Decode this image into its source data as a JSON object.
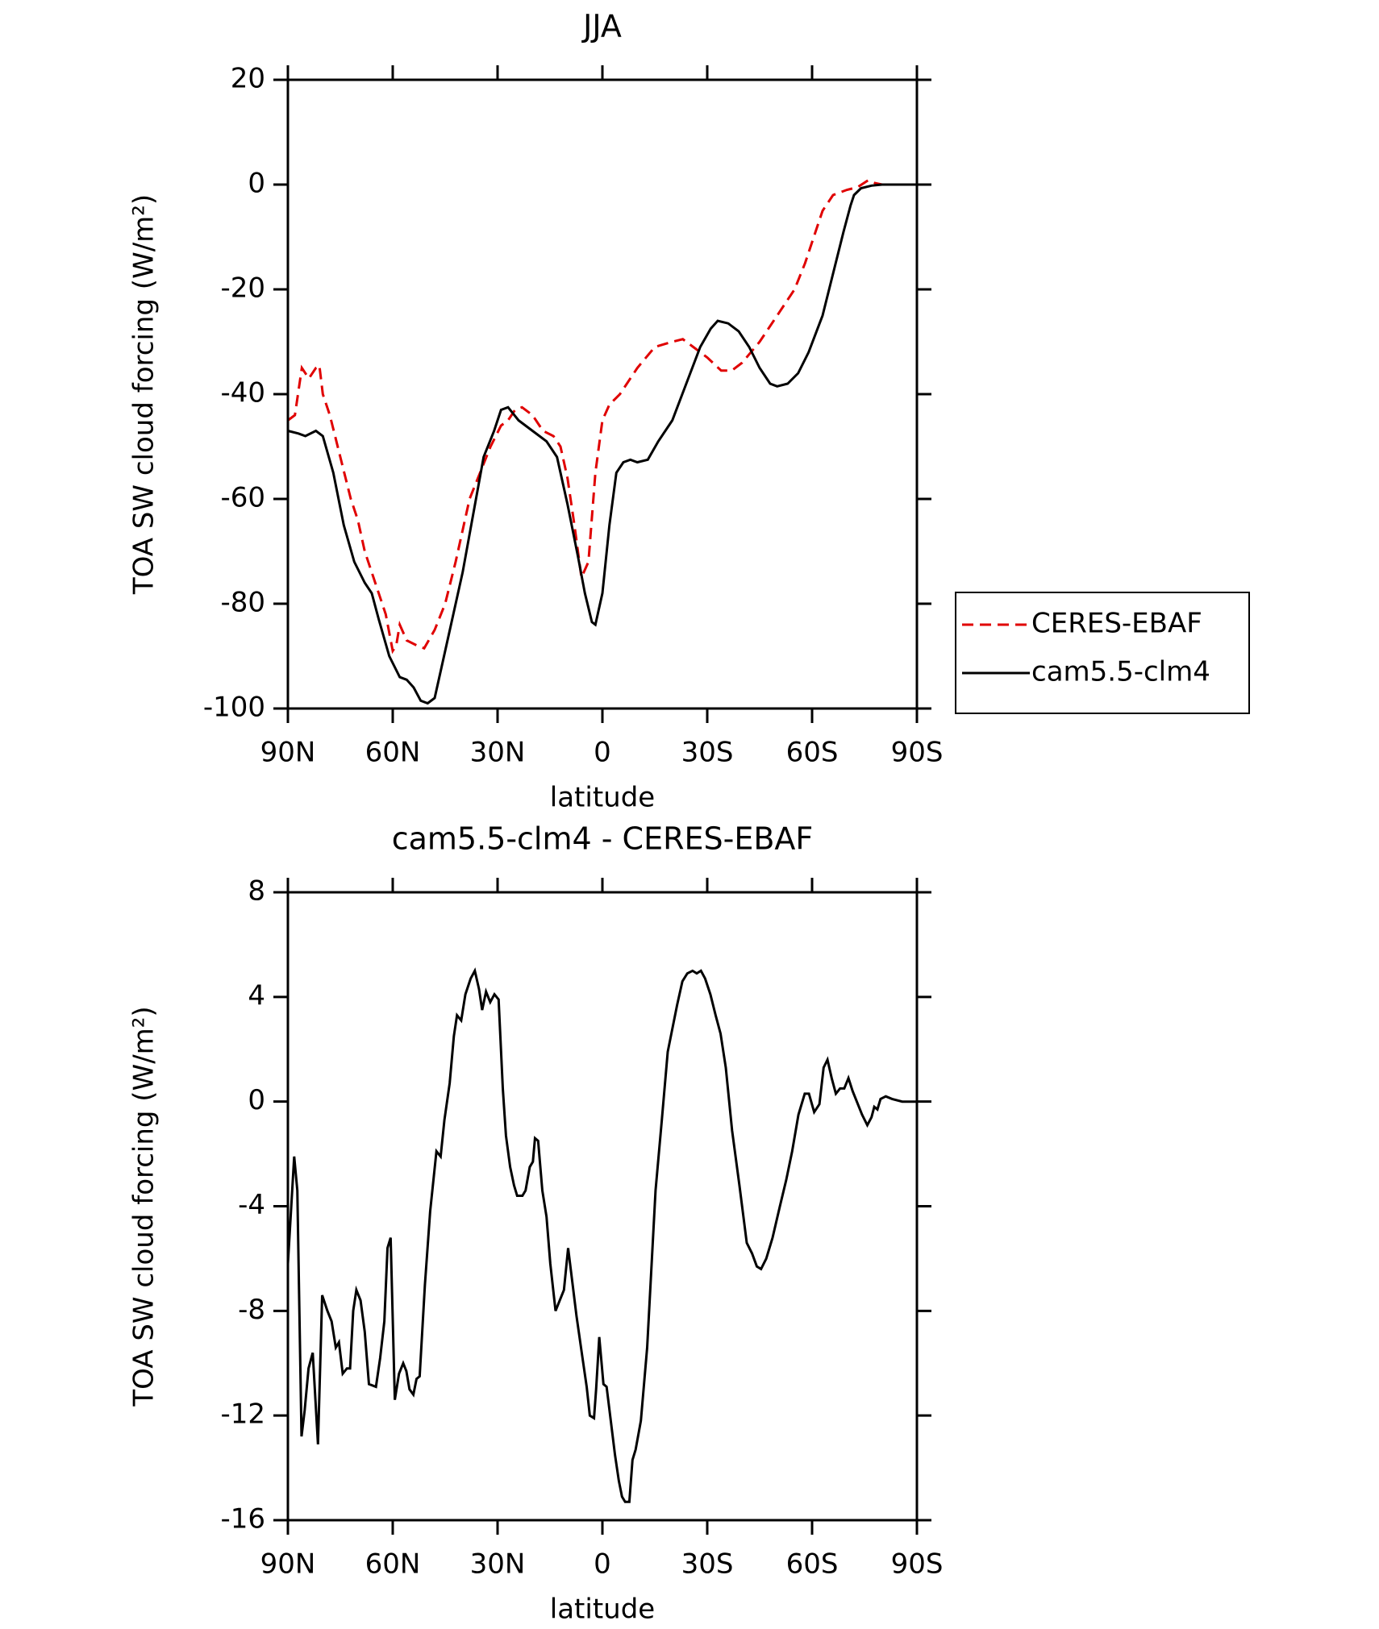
{
  "chart_data": [
    {
      "type": "line",
      "title": "JJA",
      "x_label": "latitude",
      "y_label": "TOA SW cloud forcing (W/m²)",
      "xlim": [
        90,
        -90
      ],
      "xticks": [
        {
          "value": 90,
          "label": "90N"
        },
        {
          "value": 60,
          "label": "60N"
        },
        {
          "value": 30,
          "label": "30N"
        },
        0,
        {
          "value": -30,
          "label": "30S"
        },
        {
          "value": -60,
          "label": "60S"
        },
        {
          "value": -90,
          "label": "90S"
        }
      ],
      "ylim": [
        -100,
        20
      ],
      "yticks": [
        20,
        0,
        -20,
        -40,
        -60,
        -80,
        -100
      ],
      "legend": "outside-right",
      "series": [
        {
          "name": "CERES-EBAF",
          "color": "#e00000",
          "style": "dashed",
          "x": [
            90,
            88,
            86,
            84,
            82,
            81,
            80,
            78,
            75,
            72,
            70,
            68,
            65,
            62,
            60,
            59,
            58,
            56,
            53,
            51,
            48,
            45,
            42,
            38,
            35,
            32,
            29,
            27,
            25,
            23,
            20,
            17,
            14,
            12,
            10,
            8,
            6,
            4,
            2,
            0,
            -2,
            -5,
            -10,
            -15,
            -20,
            -23,
            -26,
            -30,
            -34,
            -37,
            -40,
            -45,
            -50,
            -55,
            -58,
            -61,
            -63,
            -66,
            -70,
            -73,
            -76,
            -78,
            -80,
            -90
          ],
          "values": [
            -45,
            -44,
            -35,
            -37,
            -35,
            -34.5,
            -40,
            -44,
            -52,
            -60,
            -64,
            -70,
            -76,
            -82,
            -89,
            -88,
            -84,
            -87,
            -88,
            -88.5,
            -85,
            -80,
            -72,
            -60,
            -55,
            -50,
            -46,
            -45,
            -43,
            -42.5,
            -44,
            -47,
            -48,
            -50,
            -56,
            -65,
            -75,
            -72,
            -55,
            -45,
            -42,
            -40,
            -35,
            -31,
            -30,
            -29.5,
            -31,
            -33,
            -35.5,
            -35.5,
            -34,
            -30,
            -25,
            -20,
            -15,
            -9,
            -5,
            -2,
            -1,
            -0.5,
            0.8,
            0.3,
            0,
            0
          ]
        },
        {
          "name": "cam5.5-clm4",
          "color": "#000000",
          "style": "solid",
          "x": [
            90,
            87,
            85,
            82,
            80,
            77,
            74,
            71,
            68,
            66,
            64,
            61,
            58,
            56,
            54,
            52,
            50,
            48,
            46,
            43,
            40,
            37,
            34,
            31,
            29,
            27,
            24,
            20,
            16,
            13,
            10,
            7,
            5,
            3,
            2,
            0,
            -2,
            -4,
            -6,
            -8,
            -10,
            -13,
            -16,
            -20,
            -24,
            -28,
            -31,
            -33,
            -36,
            -39,
            -42,
            -45,
            -48,
            -50,
            -53,
            -56,
            -59,
            -63,
            -66,
            -69,
            -71,
            -72,
            -74,
            -77,
            -80,
            -90
          ],
          "values": [
            -47,
            -47.5,
            -48,
            -47,
            -48,
            -55,
            -65,
            -72,
            -76,
            -78,
            -83,
            -90,
            -94,
            -94.5,
            -96,
            -98.5,
            -99,
            -98,
            -92,
            -83,
            -74,
            -63,
            -52,
            -47,
            -43,
            -42.5,
            -45,
            -47,
            -49,
            -52,
            -61,
            -71,
            -78,
            -83.5,
            -84,
            -78,
            -65,
            -55,
            -53,
            -52.5,
            -53,
            -52.5,
            -49,
            -45,
            -38,
            -31,
            -27.5,
            -26,
            -26.5,
            -28,
            -31,
            -35,
            -38,
            -38.5,
            -38,
            -36,
            -32,
            -25,
            -17,
            -9,
            -4,
            -2,
            -0.7,
            -0.2,
            0,
            0
          ]
        }
      ]
    },
    {
      "type": "line",
      "title": "cam5.5-clm4 - CERES-EBAF",
      "x_label": "latitude",
      "y_label": "TOA SW cloud forcing (W/m²)",
      "xlim": [
        90,
        -90
      ],
      "xticks": [
        {
          "value": 90,
          "label": "90N"
        },
        {
          "value": 60,
          "label": "60N"
        },
        {
          "value": 30,
          "label": "30N"
        },
        0,
        {
          "value": -30,
          "label": "30S"
        },
        {
          "value": -60,
          "label": "60S"
        },
        {
          "value": -90,
          "label": "90S"
        }
      ],
      "ylim": [
        -16,
        8
      ],
      "yticks": [
        8,
        4,
        0,
        -4,
        -8,
        -12,
        -16
      ],
      "series": [
        {
          "color": "#000000",
          "style": "solid",
          "x": [
            90,
            88.2,
            87.3,
            86.1,
            85.2,
            84.1,
            82.9,
            81.4,
            80.2,
            78.7,
            77.5,
            76.3,
            75.4,
            74.3,
            73.1,
            72.2,
            71.3,
            70.4,
            69.2,
            68.0,
            66.8,
            64.8,
            63.6,
            62.4,
            61.5,
            60.6,
            59.4,
            58.2,
            57.0,
            56.1,
            55.2,
            54.1,
            53.2,
            52.3,
            50.8,
            49.3,
            47.5,
            46.3,
            45.2,
            43.7,
            42.5,
            41.6,
            40.4,
            39.2,
            37.7,
            36.5,
            35.3,
            34.4,
            33.3,
            32.1,
            30.9,
            29.7,
            28.5,
            27.6,
            26.4,
            25.3,
            24.4,
            22.9,
            22.0,
            20.8,
            19.9,
            19.3,
            18.4,
            17.2,
            16.0,
            14.9,
            13.4,
            12.2,
            11.0,
            9.8,
            8.6,
            7.4,
            5.9,
            4.5,
            3.6,
            2.4,
            1.8,
            0.9,
            -0.3,
            -1.2,
            -2.4,
            -3.6,
            -4.7,
            -5.6,
            -6.5,
            -7.7,
            -8.6,
            -9.5,
            -11.0,
            -12.8,
            -14.0,
            -15.2,
            -17.0,
            -18.7,
            -19.9,
            -21.4,
            -22.9,
            -24.3,
            -25.8,
            -27.0,
            -28.2,
            -29.4,
            -30.9,
            -32.4,
            -33.8,
            -35.3,
            -37.1,
            -39.2,
            -41.3,
            -42.8,
            -44.2,
            -45.4,
            -46.9,
            -48.7,
            -50.8,
            -52.6,
            -54.3,
            -56.1,
            -57.9,
            -59.1,
            -60.6,
            -62.1,
            -63.3,
            -64.4,
            -65.6,
            -66.8,
            -68.0,
            -69.2,
            -70.4,
            -71.6,
            -73.1,
            -74.3,
            -75.8,
            -77.0,
            -77.8,
            -78.7,
            -79.6,
            -81.1,
            -82.9,
            -85.8,
            -90
          ],
          "values": [
            -6.2,
            -2.1,
            -3.4,
            -12.8,
            -11.8,
            -10.2,
            -9.6,
            -13.1,
            -7.4,
            -8.0,
            -8.4,
            -9.4,
            -9.2,
            -10.4,
            -10.2,
            -10.2,
            -8.0,
            -7.2,
            -7.6,
            -8.8,
            -10.8,
            -10.9,
            -9.8,
            -8.4,
            -5.6,
            -5.2,
            -11.4,
            -10.4,
            -10.0,
            -10.3,
            -11.0,
            -11.2,
            -10.6,
            -10.5,
            -7.0,
            -4.2,
            -1.9,
            -2.1,
            -0.7,
            0.7,
            2.5,
            3.3,
            3.1,
            4.1,
            4.7,
            5.0,
            4.3,
            3.5,
            4.2,
            3.8,
            4.1,
            3.9,
            0.5,
            -1.3,
            -2.5,
            -3.2,
            -3.6,
            -3.6,
            -3.4,
            -2.5,
            -2.3,
            -1.4,
            -1.5,
            -3.4,
            -4.4,
            -6.2,
            -8.0,
            -7.6,
            -7.2,
            -5.6,
            -6.9,
            -8.2,
            -9.6,
            -10.9,
            -12.0,
            -12.1,
            -11.0,
            -9.0,
            -10.8,
            -10.9,
            -12.2,
            -13.5,
            -14.5,
            -15.1,
            -15.3,
            -15.3,
            -13.7,
            -13.3,
            -12.2,
            -9.4,
            -6.4,
            -3.4,
            -0.7,
            1.9,
            2.7,
            3.7,
            4.6,
            4.9,
            5.0,
            4.9,
            5.0,
            4.7,
            4.1,
            3.3,
            2.6,
            1.3,
            -1.1,
            -3.2,
            -5.4,
            -5.8,
            -6.3,
            -6.4,
            -6.0,
            -5.2,
            -4.0,
            -3.0,
            -1.9,
            -0.5,
            0.3,
            0.3,
            -0.4,
            -0.1,
            1.3,
            1.6,
            0.9,
            0.3,
            0.5,
            0.5,
            0.9,
            0.4,
            -0.1,
            -0.5,
            -0.9,
            -0.6,
            -0.2,
            -0.3,
            0.1,
            0.2,
            0.1,
            0,
            0
          ]
        }
      ]
    }
  ]
}
